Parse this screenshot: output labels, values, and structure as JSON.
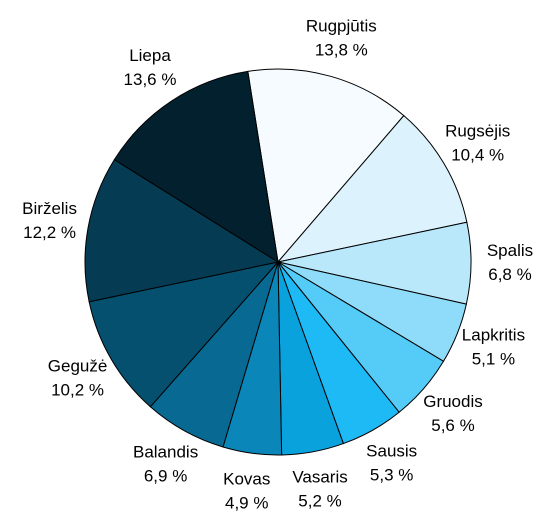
{
  "chart_data": {
    "type": "pie",
    "categories": [
      "Rugpjūtis",
      "Rugsėjis",
      "Spalis",
      "Lapkritis",
      "Gruodis",
      "Sausis",
      "Vasaris",
      "Kovas",
      "Balandis",
      "Gegužė",
      "Birželis",
      "Liepa"
    ],
    "values": [
      13.8,
      10.4,
      6.8,
      5.1,
      5.6,
      5.3,
      5.2,
      4.9,
      6.9,
      10.2,
      12.2,
      13.6
    ],
    "value_labels": [
      "13,8 %",
      "10,4 %",
      "6,8 %",
      "5,1 %",
      "5,6 %",
      "5,3 %",
      "5,2 %",
      "4,9 %",
      "6,9 %",
      "10,2 %",
      "12,2 %",
      "13,6 %"
    ],
    "colors": [
      "#f5fbff",
      "#dcf3fd",
      "#b9e8fb",
      "#8fdcfa",
      "#55ccf8",
      "#1ebaf5",
      "#0aa2dd",
      "#0a86b8",
      "#086a92",
      "#06506f",
      "#053c54",
      "#03202e"
    ]
  }
}
